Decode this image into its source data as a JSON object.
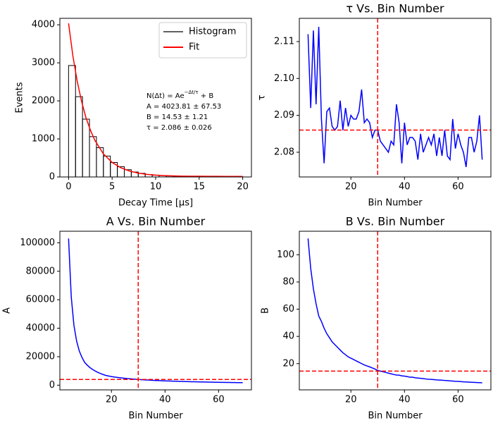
{
  "chart_data": [
    {
      "type": "histogram",
      "xlabel": "Decay Time [μs]",
      "ylabel": "Events",
      "xlim": [
        -1,
        21
      ],
      "ylim": [
        0,
        4170
      ],
      "xticks": [
        0,
        5,
        10,
        15,
        20
      ],
      "yticks": [
        0,
        1000,
        2000,
        3000,
        4000
      ],
      "legend": "upper right",
      "histogram": {
        "name": "Histogram",
        "color": "#000000",
        "bins": [
          0,
          0.8,
          1.6,
          2.4,
          3.2,
          4,
          4.8,
          5.6,
          6.4,
          7.2,
          8,
          8.8,
          9.6,
          10.4,
          11.2,
          12,
          12.8,
          13.6,
          14.4,
          15.2,
          16,
          16.8,
          17.6,
          18.4,
          19.2,
          20
        ],
        "counts": [
          2930,
          2110,
          1520,
          1060,
          770,
          550,
          380,
          270,
          190,
          130,
          95,
          65,
          45,
          35,
          25,
          20,
          15,
          12,
          10,
          8,
          6,
          5,
          4,
          3,
          3
        ]
      },
      "fit": {
        "name": "Fit",
        "color": "#ff0000",
        "x": [
          0,
          0.5,
          1,
          1.5,
          2,
          2.5,
          3,
          4,
          5,
          6,
          7,
          8,
          9,
          10,
          11,
          12,
          13,
          14,
          15,
          16,
          17,
          18,
          19,
          20
        ],
        "values": [
          4038,
          3174,
          2506,
          1980,
          1557,
          1236,
          970,
          606,
          381,
          241,
          155,
          101,
          68,
          48,
          35,
          27,
          22,
          19,
          18,
          16,
          16,
          15,
          15,
          15
        ]
      },
      "annotation": {
        "formula": {
          "text": "N(Δt) = Ae",
          "sup": "−Δt/τ",
          "tail": " + B"
        },
        "lines": [
          "A = 4023.81 ± 67.53",
          "B = 14.53 ± 1.21",
          "τ = 2.086 ± 0.026"
        ]
      }
    },
    {
      "type": "line",
      "title": "τ Vs. Bin Number",
      "xlabel": "Bin Number",
      "ylabel": "τ",
      "xlim": [
        0.75,
        72.25
      ],
      "ylim": [
        2.0733,
        2.1163
      ],
      "xticks": [
        20,
        40,
        60
      ],
      "yticks": [
        2.08,
        2.09,
        {
          "value": 2.1,
          "label": "2.10"
        },
        2.11
      ],
      "vline": 30,
      "hline": 2.086,
      "ref_color": "#ff0000",
      "x": [
        4,
        5,
        6,
        7,
        8,
        9,
        10,
        11,
        12,
        13,
        14,
        15,
        16,
        17,
        18,
        19,
        20,
        21,
        22,
        23,
        24,
        25,
        26,
        27,
        28,
        29,
        30,
        31,
        32,
        33,
        34,
        35,
        36,
        37,
        38,
        39,
        40,
        41,
        42,
        43,
        44,
        45,
        46,
        47,
        48,
        49,
        50,
        51,
        52,
        53,
        54,
        55,
        56,
        57,
        58,
        59,
        60,
        61,
        62,
        63,
        64,
        65,
        66,
        67,
        68,
        69
      ],
      "series": [
        {
          "color": "#0000ff",
          "values": [
            2.112,
            2.092,
            2.113,
            2.093,
            2.114,
            2.089,
            2.077,
            2.091,
            2.092,
            2.087,
            2.086,
            2.087,
            2.094,
            2.086,
            2.092,
            2.087,
            2.09,
            2.089,
            2.089,
            2.091,
            2.097,
            2.088,
            2.089,
            2.088,
            2.084,
            2.086,
            2.086,
            2.083,
            2.082,
            2.081,
            2.08,
            2.083,
            2.082,
            2.093,
            2.088,
            2.077,
            2.088,
            2.082,
            2.084,
            2.084,
            2.083,
            2.078,
            2.085,
            2.08,
            2.082,
            2.084,
            2.082,
            2.085,
            2.079,
            2.084,
            2.079,
            2.086,
            2.079,
            2.078,
            2.089,
            2.081,
            2.085,
            2.082,
            2.08,
            2.076,
            2.084,
            2.084,
            2.08,
            2.083,
            2.09,
            2.078
          ]
        }
      ]
    },
    {
      "type": "line",
      "title": "A Vs. Bin Number",
      "xlabel": "Bin Number",
      "ylabel": "A",
      "xlim": [
        0.75,
        72.25
      ],
      "ylim": [
        -3300,
        108100
      ],
      "xticks": [
        20,
        40,
        60
      ],
      "yticks": [
        0,
        20000,
        40000,
        60000,
        80000,
        100000
      ],
      "vline": 30,
      "hline": 4024,
      "ref_color": "#ff0000",
      "x": [
        4,
        5,
        6,
        7,
        8,
        9,
        10,
        11,
        12,
        13,
        14,
        15,
        16,
        17,
        18,
        19,
        20,
        21,
        22,
        23,
        24,
        25,
        26,
        27,
        28,
        29,
        30,
        31,
        32,
        33,
        34,
        35,
        36,
        37,
        38,
        39,
        40,
        41,
        42,
        43,
        44,
        45,
        46,
        47,
        48,
        49,
        50,
        51,
        52,
        53,
        54,
        55,
        56,
        57,
        58,
        59,
        60,
        61,
        62,
        63,
        64,
        65,
        66,
        67,
        68,
        69
      ],
      "series": [
        {
          "color": "#0000ff",
          "values": [
            103000,
            62000,
            42000,
            31000,
            24000,
            19500,
            16000,
            14000,
            12300,
            11000,
            9900,
            8900,
            8100,
            7400,
            6800,
            6400,
            6040,
            5750,
            5490,
            5250,
            5030,
            4830,
            4640,
            4470,
            4310,
            4160,
            4020,
            3890,
            3770,
            3660,
            3550,
            3450,
            3350,
            3260,
            3180,
            3090,
            3020,
            2940,
            2870,
            2810,
            2740,
            2680,
            2620,
            2570,
            2510,
            2460,
            2410,
            2370,
            2320,
            2280,
            2240,
            2190,
            2160,
            2120,
            2080,
            2050,
            2010,
            1980,
            1950,
            1920,
            1890,
            1860,
            1830,
            1800,
            1780,
            1750
          ]
        }
      ]
    },
    {
      "type": "line",
      "title": "B Vs. Bin Number",
      "xlabel": "Bin Number",
      "ylabel": "B",
      "xlim": [
        0.75,
        72.25
      ],
      "ylim": [
        0.7,
        117.3
      ],
      "xticks": [
        20,
        40,
        60
      ],
      "yticks": [
        20,
        40,
        60,
        80,
        100
      ],
      "vline": 30,
      "hline": 14.53,
      "ref_color": "#ff0000",
      "x": [
        4,
        5,
        6,
        7,
        8,
        9,
        10,
        11,
        12,
        13,
        14,
        15,
        16,
        17,
        18,
        19,
        20,
        21,
        22,
        23,
        24,
        25,
        26,
        27,
        28,
        29,
        30,
        31,
        32,
        33,
        34,
        35,
        36,
        37,
        38,
        39,
        40,
        41,
        42,
        43,
        44,
        45,
        46,
        47,
        48,
        49,
        50,
        51,
        52,
        53,
        54,
        55,
        56,
        57,
        58,
        59,
        60,
        61,
        62,
        63,
        64,
        65,
        66,
        67,
        68,
        69
      ],
      "series": [
        {
          "color": "#0000ff",
          "values": [
            112,
            90,
            75,
            64,
            55,
            51,
            46,
            42,
            39,
            36,
            34,
            32,
            30,
            28,
            26.5,
            25,
            24,
            23,
            22,
            21,
            20,
            19,
            18.3,
            17.6,
            16.8,
            16,
            15,
            14.5,
            14,
            13.5,
            13,
            12.5,
            12,
            11.6,
            11.5,
            11,
            10.8,
            10.5,
            10,
            10,
            9.6,
            9.4,
            9.2,
            9,
            8.7,
            8.5,
            8.4,
            8.2,
            8,
            7.9,
            7.8,
            7.6,
            7.5,
            7.3,
            7.2,
            7,
            6.9,
            6.8,
            6.6,
            6.5,
            6.4,
            6.3,
            6.2,
            6.1,
            6,
            5.9
          ]
        }
      ]
    }
  ]
}
